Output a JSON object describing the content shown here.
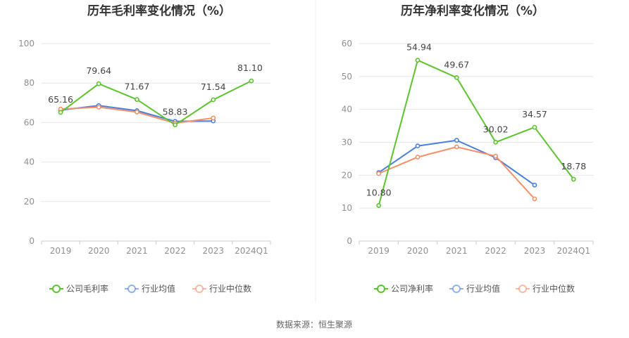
{
  "source": "数据来源：恒生聚源",
  "colors": {
    "company": "#5cc42c",
    "industry_avg": "#4a7fdb",
    "industry_median": "#f4906a",
    "grid": "#e6e6ee",
    "axis": "#cccccc"
  },
  "chart_data": [
    {
      "type": "line",
      "title": "历年毛利率变化情况（%）",
      "categories": [
        "2019",
        "2020",
        "2021",
        "2022",
        "2023",
        "2024Q1"
      ],
      "ylim": [
        0,
        100
      ],
      "yticks": [
        0,
        20,
        40,
        60,
        80,
        100
      ],
      "series": [
        {
          "name": "公司毛利率",
          "color_key": "company",
          "values": [
            65.16,
            79.64,
            71.67,
            58.83,
            71.54,
            81.1
          ],
          "labels": [
            "65.16",
            "79.64",
            "71.67",
            "58.83",
            "71.54",
            "81.10"
          ]
        },
        {
          "name": "行业均值",
          "color_key": "industry_avg",
          "values": [
            66.3,
            68.6,
            66.0,
            60.6,
            60.8,
            null
          ]
        },
        {
          "name": "行业中位数",
          "color_key": "industry_median",
          "values": [
            66.8,
            67.8,
            65.3,
            59.7,
            62.3,
            null
          ]
        }
      ],
      "legend": "bottom"
    },
    {
      "type": "line",
      "title": "历年净利率变化情况（%）",
      "categories": [
        "2019",
        "2020",
        "2021",
        "2022",
        "2023",
        "2024Q1"
      ],
      "ylim": [
        0,
        60
      ],
      "yticks": [
        0,
        10,
        20,
        30,
        40,
        50,
        60
      ],
      "series": [
        {
          "name": "公司净利率",
          "color_key": "company",
          "values": [
            10.8,
            54.94,
            49.67,
            30.02,
            34.57,
            18.78
          ],
          "labels": [
            "10.80",
            "54.94",
            "49.67",
            "30.02",
            "34.57",
            "18.78"
          ]
        },
        {
          "name": "行业均值",
          "color_key": "industry_avg",
          "values": [
            20.8,
            28.9,
            30.6,
            25.3,
            17.0,
            null
          ]
        },
        {
          "name": "行业中位数",
          "color_key": "industry_median",
          "values": [
            20.5,
            25.5,
            28.6,
            25.8,
            12.8,
            null
          ]
        }
      ],
      "legend": "bottom"
    }
  ]
}
